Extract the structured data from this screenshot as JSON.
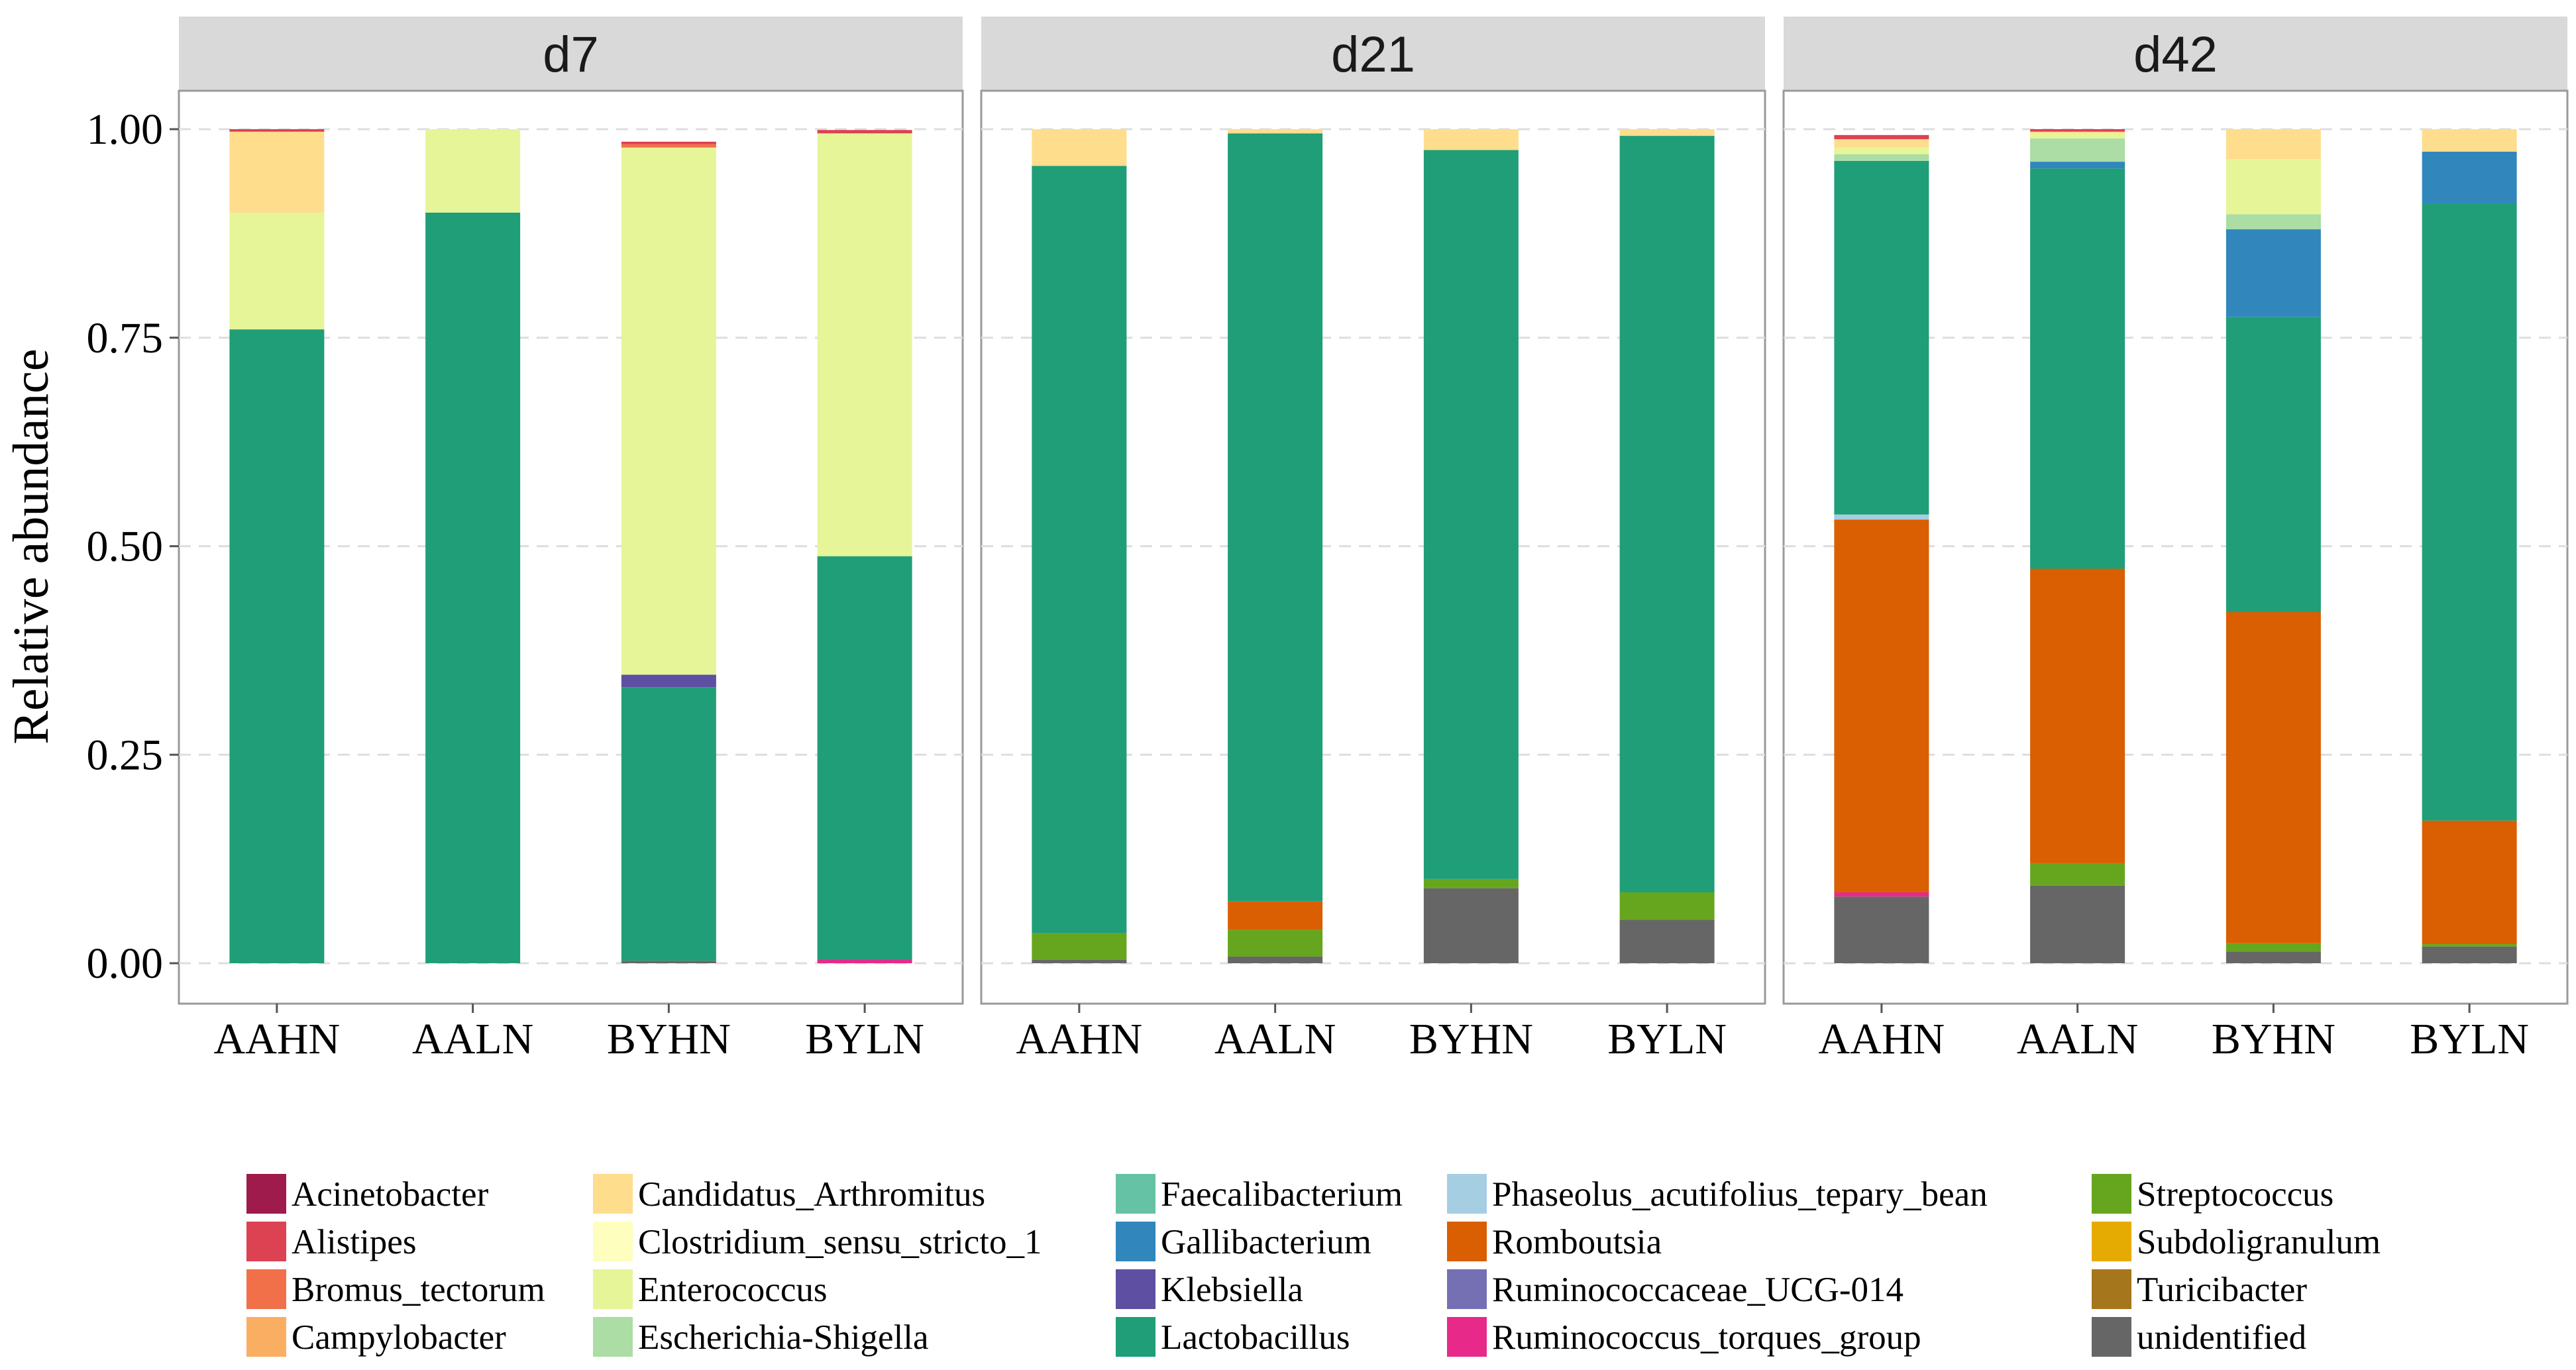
{
  "chart_data": {
    "type": "bar",
    "stacked": true,
    "facets": [
      "d7",
      "d21",
      "d42"
    ],
    "categories": [
      "AAHN",
      "AALN",
      "BYHN",
      "BYLN"
    ],
    "ylabel": "Relative abundance",
    "ylim": [
      0,
      1.0
    ],
    "yticks": [
      "0.00",
      "0.25",
      "0.50",
      "0.75",
      "1.00"
    ],
    "ytick_values": [
      0,
      0.25,
      0.5,
      0.75,
      1.0
    ],
    "grid": true,
    "legend_position": "bottom",
    "genera": [
      {
        "name": "Acinetobacter",
        "color": "#9e1b4b"
      },
      {
        "name": "Alistipes",
        "color": "#dc4251"
      },
      {
        "name": "Bromus_tectorum",
        "color": "#f1704a"
      },
      {
        "name": "Campylobacter",
        "color": "#faae61"
      },
      {
        "name": "Candidatus_Arthromitus",
        "color": "#fedd8d"
      },
      {
        "name": "Clostridium_sensu_stricto_1",
        "color": "#fefebe"
      },
      {
        "name": "Enterococcus",
        "color": "#e6f598"
      },
      {
        "name": "Escherichia-Shigella",
        "color": "#abdda4"
      },
      {
        "name": "Faecalibacterium",
        "color": "#66c2a5"
      },
      {
        "name": "Gallibacterium",
        "color": "#3187bc"
      },
      {
        "name": "Klebsiella",
        "color": "#5e4fa2"
      },
      {
        "name": "Lactobacillus",
        "color": "#1f9e77"
      },
      {
        "name": "Phaseolus_acutifolius_tepary_bean",
        "color": "#a6cee3"
      },
      {
        "name": "Romboutsia",
        "color": "#d95f02"
      },
      {
        "name": "Ruminococcaceae_UCG-014",
        "color": "#7570b3"
      },
      {
        "name": "Ruminococcus_torques_group",
        "color": "#e7298a"
      },
      {
        "name": "Streptococcus",
        "color": "#66a61e"
      },
      {
        "name": "Subdoligranulum",
        "color": "#e6ab02"
      },
      {
        "name": "Turicibacter",
        "color": "#a6761d"
      },
      {
        "name": "unidentified",
        "color": "#666666"
      }
    ],
    "stack_order_bottom_to_top": [
      "unidentified",
      "Turicibacter",
      "Subdoligranulum",
      "Streptococcus",
      "Ruminococcus_torques_group",
      "Ruminococcaceae_UCG-014",
      "Romboutsia",
      "Phaseolus_acutifolius_tepary_bean",
      "Lactobacillus",
      "Klebsiella",
      "Gallibacterium",
      "Faecalibacterium",
      "Escherichia-Shigella",
      "Enterococcus",
      "Clostridium_sensu_stricto_1",
      "Candidatus_Arthromitus",
      "Campylobacter",
      "Bromus_tectorum",
      "Alistipes",
      "Acinetobacter"
    ],
    "panels": [
      {
        "facet": "d7",
        "bars": [
          {
            "category": "AAHN",
            "values": {
              "Lactobacillus": 0.76,
              "Enterococcus": 0.14,
              "Candidatus_Arthromitus": 0.097,
              "Alistipes": 0.003
            }
          },
          {
            "category": "AALN",
            "values": {
              "Lactobacillus": 0.9,
              "Enterococcus": 0.1
            }
          },
          {
            "category": "BYHN",
            "values": {
              "unidentified": 0.003,
              "Bromus_tectorum": 0.004,
              "Lactobacillus": 0.328,
              "Klebsiella": 0.015,
              "Enterococcus": 0.632,
              "Alistipes": 0.003
            }
          },
          {
            "category": "BYLN",
            "values": {
              "Ruminococcus_torques_group": 0.004,
              "Lactobacillus": 0.484,
              "Enterococcus": 0.507,
              "Alistipes": 0.004
            }
          }
        ]
      },
      {
        "facet": "d21",
        "bars": [
          {
            "category": "AAHN",
            "values": {
              "unidentified": 0.004,
              "Streptococcus": 0.032,
              "Lactobacillus": 0.92,
              "Candidatus_Arthromitus": 0.044
            }
          },
          {
            "category": "AALN",
            "values": {
              "unidentified": 0.008,
              "Streptococcus": 0.032,
              "Romboutsia": 0.034,
              "Lactobacillus": 0.921,
              "Candidatus_Arthromitus": 0.005
            }
          },
          {
            "category": "BYHN",
            "values": {
              "unidentified": 0.09,
              "Streptococcus": 0.011,
              "Lactobacillus": 0.874,
              "Candidatus_Arthromitus": 0.025
            }
          },
          {
            "category": "BYLN",
            "values": {
              "unidentified": 0.052,
              "Streptococcus": 0.033,
              "Lactobacillus": 0.907,
              "Candidatus_Arthromitus": 0.008
            }
          }
        ]
      },
      {
        "facet": "d42",
        "bars": [
          {
            "category": "AAHN",
            "values": {
              "unidentified": 0.08,
              "Ruminococcus_torques_group": 0.005,
              "Romboutsia": 0.447,
              "Lactobacillus": 0.424,
              "Phaseolus_acutifolius_tepary_bean": 0.006,
              "Escherichia-Shigella": 0.008,
              "Enterococcus": 0.008,
              "Candidatus_Arthromitus": 0.01,
              "Alistipes": 0.005
            }
          },
          {
            "category": "AALN",
            "values": {
              "unidentified": 0.093,
              "Streptococcus": 0.027,
              "Romboutsia": 0.353,
              "Lactobacillus": 0.48,
              "Gallibacterium": 0.008,
              "Escherichia-Shigella": 0.028,
              "Enterococcus": 0.006,
              "Candidatus_Arthromitus": 0.002,
              "Alistipes": 0.003
            }
          },
          {
            "category": "BYHN",
            "values": {
              "unidentified": 0.014,
              "Streptococcus": 0.01,
              "Romboutsia": 0.397,
              "Lactobacillus": 0.354,
              "Gallibacterium": 0.105,
              "Escherichia-Shigella": 0.018,
              "Enterococcus": 0.066,
              "Candidatus_Arthromitus": 0.036
            }
          },
          {
            "category": "BYLN",
            "values": {
              "unidentified": 0.02,
              "Streptococcus": 0.003,
              "Romboutsia": 0.148,
              "Lactobacillus": 0.74,
              "Gallibacterium": 0.062,
              "Candidatus_Arthromitus": 0.027
            }
          }
        ]
      }
    ]
  }
}
